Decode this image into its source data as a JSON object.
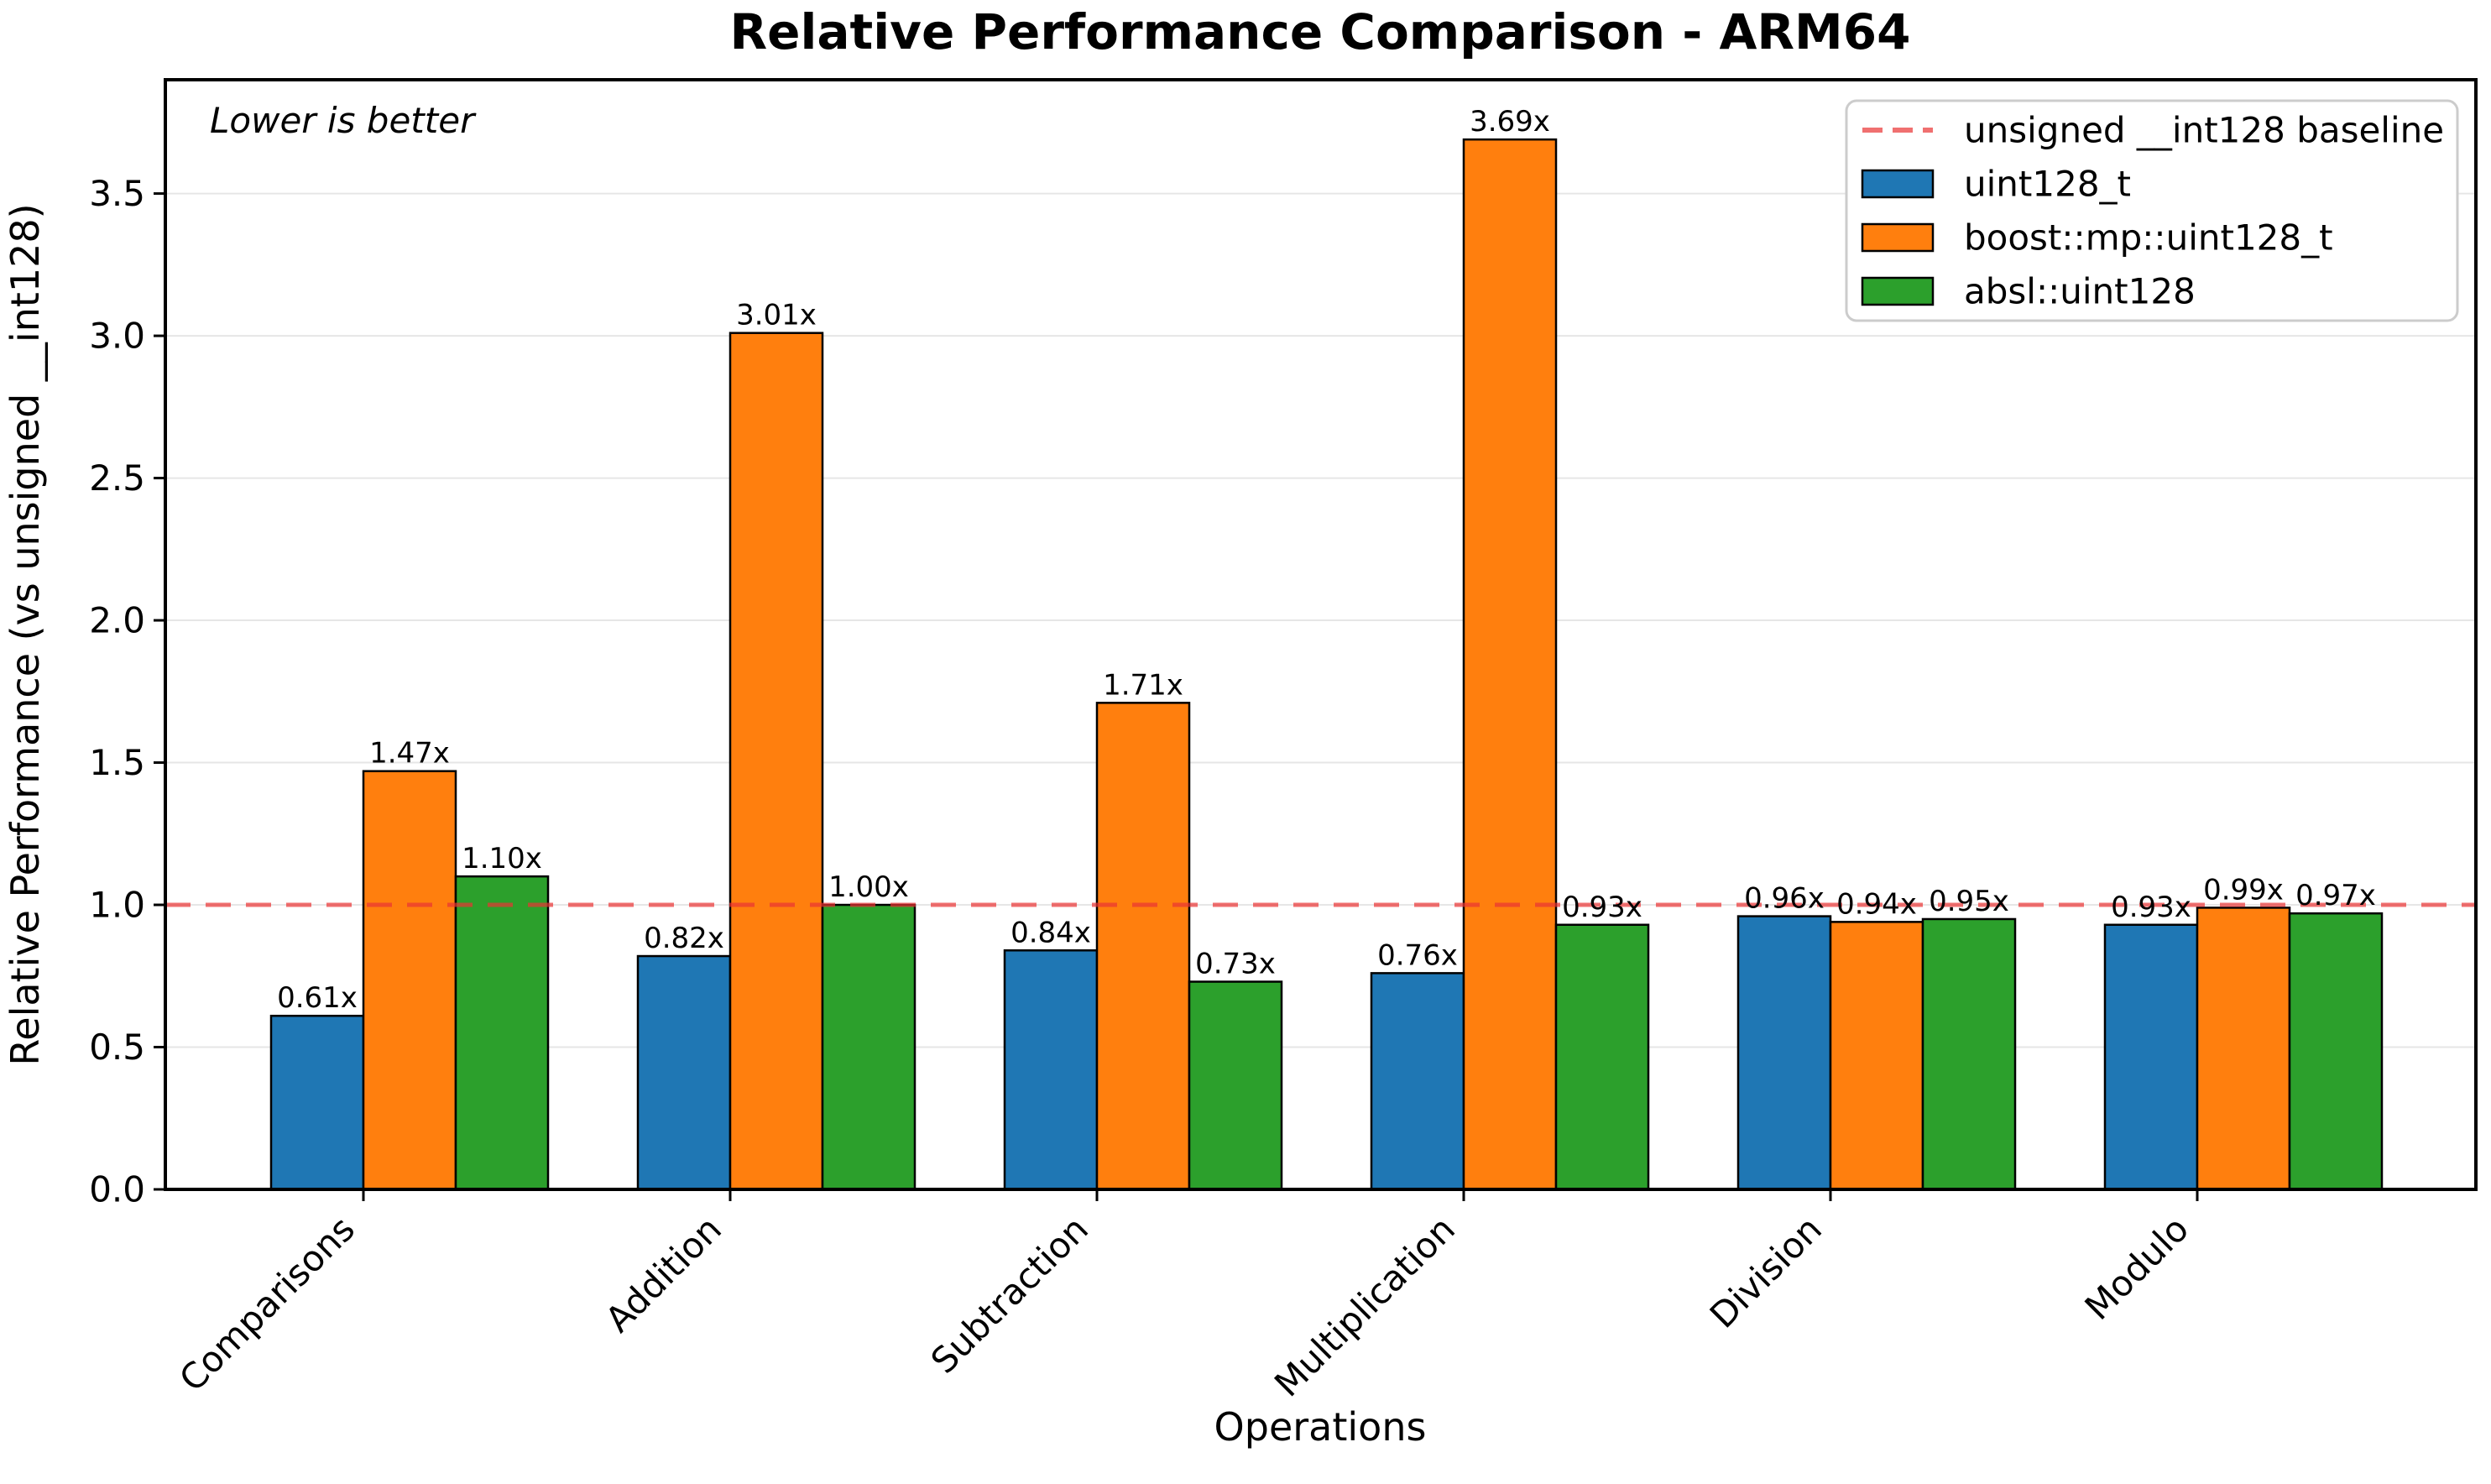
{
  "page": {
    "background": "#ffffff"
  },
  "chart_data": {
    "type": "bar",
    "title": "Relative Performance Comparison - ARM64",
    "xlabel": "Operations",
    "ylabel": "Relative Performance (vs unsigned __int128)",
    "annotation": "Lower is better",
    "categories": [
      "Comparisons",
      "Addition",
      "Subtraction",
      "Multiplication",
      "Division",
      "Modulo"
    ],
    "series": [
      {
        "name": "uint128_t",
        "color": "#1f77b4",
        "values": [
          0.61,
          0.82,
          0.84,
          0.76,
          0.96,
          0.93
        ],
        "labels": [
          "0.61x",
          "0.82x",
          "0.84x",
          "0.76x",
          "0.96x",
          "0.93x"
        ]
      },
      {
        "name": "boost::mp::uint128_t",
        "color": "#ff7f0e",
        "values": [
          1.47,
          3.01,
          1.71,
          3.69,
          0.94,
          0.99
        ],
        "labels": [
          "1.47x",
          "3.01x",
          "1.71x",
          "3.69x",
          "0.94x",
          "0.99x"
        ]
      },
      {
        "name": "absl::uint128",
        "color": "#2ca02c",
        "values": [
          1.1,
          1.0,
          0.73,
          0.93,
          0.95,
          0.97
        ],
        "labels": [
          "1.10x",
          "1.00x",
          "0.73x",
          "0.93x",
          "0.95x",
          "0.97x"
        ]
      }
    ],
    "baseline": {
      "value": 1.0,
      "label": "unsigned __int128 baseline",
      "color": "#e93333",
      "opacity": 0.7
    },
    "yticks": [
      "0.0",
      "0.5",
      "1.0",
      "1.5",
      "2.0",
      "2.5",
      "3.0",
      "3.5"
    ],
    "ylim": [
      0,
      3.9
    ],
    "grid": true,
    "legend_position": "upper right",
    "bar_edge_color": "#000000",
    "value_suffix": "x"
  }
}
